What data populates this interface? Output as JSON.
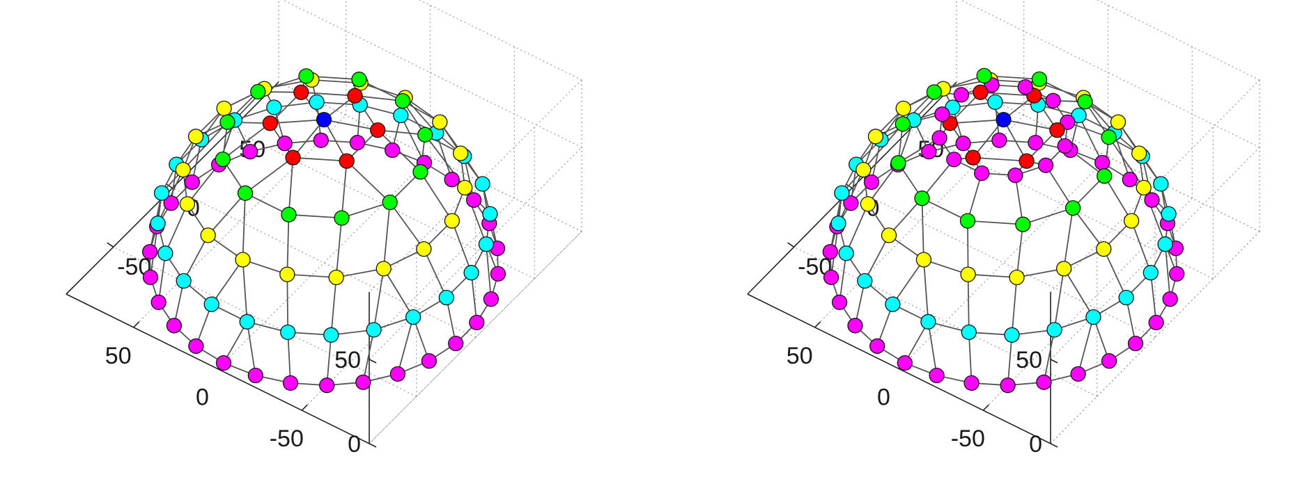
{
  "chart_data": [
    {
      "type": "scatter",
      "title": "",
      "xlabel": "",
      "ylabel": "",
      "zlabel": "",
      "xlim": [
        -90,
        90
      ],
      "ylim": [
        -90,
        90
      ],
      "zlim": [
        0,
        90
      ],
      "x_ticks": [
        "-50",
        "0",
        "50"
      ],
      "y_ticks": [
        "-50",
        "0",
        "50"
      ],
      "z_ticks": [
        "0",
        "50"
      ],
      "grid": true,
      "radius": 85,
      "series": [
        {
          "color": "#0000ff",
          "polar_angle_deg": 0,
          "points": 1
        },
        {
          "color": "#ff0000",
          "polar_angle_deg": 18,
          "points": 6
        },
        {
          "color": "#00ff00",
          "polar_angle_deg": 36,
          "points": 12
        },
        {
          "color": "#ffff00",
          "polar_angle_deg": 54,
          "points": 18
        },
        {
          "color": "#00ffff",
          "polar_angle_deg": 72,
          "points": 24
        },
        {
          "color": "#ff00ff",
          "polar_angle_deg": 90,
          "points": 30
        }
      ]
    },
    {
      "type": "scatter",
      "title": "",
      "xlabel": "",
      "ylabel": "",
      "zlabel": "",
      "xlim": [
        -90,
        90
      ],
      "ylim": [
        -90,
        90
      ],
      "zlim": [
        0,
        90
      ],
      "x_ticks": [
        "-50",
        "0",
        "50"
      ],
      "y_ticks": [
        "-50",
        "0",
        "50"
      ],
      "z_ticks": [
        "0",
        "50"
      ],
      "grid": true,
      "radius": 85,
      "series": [
        {
          "color": "#0000ff",
          "polar_angle_deg": 0,
          "points": 1
        },
        {
          "color": "#ff0000",
          "polar_angle_deg": 18,
          "points": 6
        },
        {
          "color": "#ff00ff",
          "polar_angle_deg": 22,
          "points": 12
        },
        {
          "color": "#00ff00",
          "polar_angle_deg": 38,
          "points": 12
        },
        {
          "color": "#ffff00",
          "polar_angle_deg": 54,
          "points": 18
        },
        {
          "color": "#00ffff",
          "polar_angle_deg": 72,
          "points": 24
        },
        {
          "color": "#ff00ff",
          "polar_angle_deg": 90,
          "points": 30
        }
      ]
    }
  ]
}
